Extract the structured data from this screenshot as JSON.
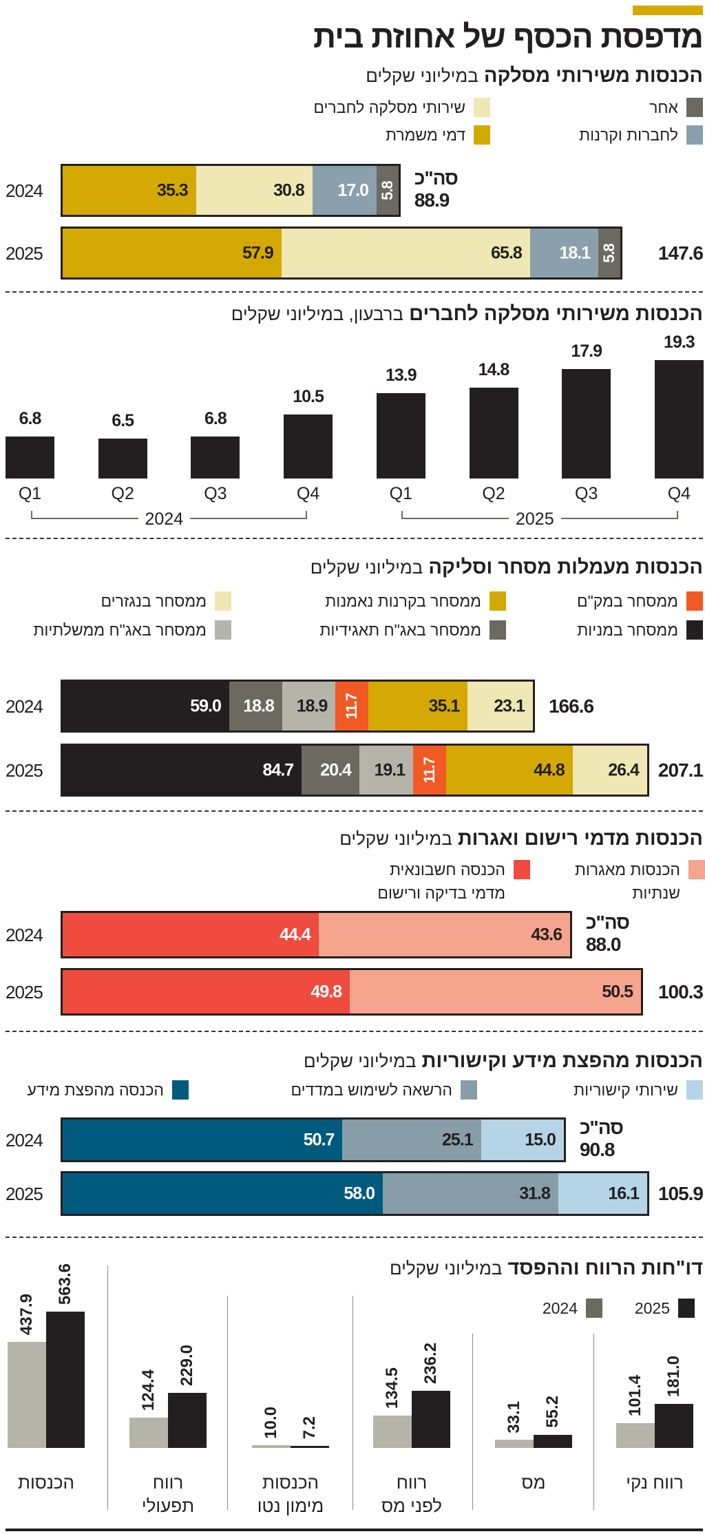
{
  "header": {
    "title": "מדפסת הכסף של אחוזת בית",
    "accent_color": "#d4a904"
  },
  "chart_data": [
    {
      "type": "bar",
      "stacked": true,
      "orientation": "horizontal",
      "title_bold": "הכנסות משירותי מסלקה",
      "title_light": "במיליוני שקלים",
      "categories": [
        "2024",
        "2025"
      ],
      "total_label": "סה\"כ",
      "totals": [
        "88.9",
        "147.6"
      ],
      "series": [
        {
          "name": "דמי משמרת",
          "color": "#d4a904",
          "text": "#231f20",
          "values": [
            35.3,
            57.9
          ]
        },
        {
          "name": "שירותי מסלקה לחברים",
          "color": "#efe8b4",
          "text": "#231f20",
          "values": [
            30.8,
            65.8
          ]
        },
        {
          "name": "לחברות וקרנות",
          "color": "#8ba0ad",
          "text": "#ffffff",
          "values": [
            17.0,
            18.1
          ]
        },
        {
          "name": "אחר",
          "color": "#6b6a60",
          "text": "#ffffff",
          "values": [
            5.8,
            5.8
          ]
        }
      ],
      "legend_order": [
        [
          3,
          1
        ],
        [
          2,
          0
        ]
      ]
    },
    {
      "type": "bar",
      "title_bold": "הכנסות משירותי מסלקה לחברים",
      "title_light": "ברבעון, במיליוני שקלים",
      "categories": [
        "Q1",
        "Q2",
        "Q3",
        "Q4",
        "Q1",
        "Q2",
        "Q3",
        "Q4"
      ],
      "groups": [
        "2024",
        "2025"
      ],
      "values": [
        6.8,
        6.5,
        6.8,
        10.5,
        13.9,
        14.8,
        17.9,
        19.3
      ],
      "color": "#231f20"
    },
    {
      "type": "bar",
      "stacked": true,
      "orientation": "horizontal",
      "title_bold": "הכנסות מעמלות מסחר וסליקה",
      "title_light": "במיליוני שקלים",
      "categories": [
        "2024",
        "2025"
      ],
      "totals": [
        "166.6",
        "207.1"
      ],
      "series": [
        {
          "name": "ממסחר במניות",
          "color": "#231f20",
          "text": "#ffffff",
          "values": [
            59.0,
            84.7
          ]
        },
        {
          "name": "ממסחר באג\"ח תאגידיות",
          "color": "#6b6a60",
          "text": "#ffffff",
          "values": [
            18.8,
            20.4
          ]
        },
        {
          "name": "ממסחר באג\"ח ממשלתיות",
          "color": "#b5b4a8",
          "text": "#231f20",
          "values": [
            18.9,
            19.1
          ]
        },
        {
          "name": "ממסחר במק\"ם",
          "color": "#f15a24",
          "text": "#ffffff",
          "values": [
            11.7,
            11.7
          ]
        },
        {
          "name": "ממסחר בקרנות נאמנות",
          "color": "#d4a904",
          "text": "#231f20",
          "values": [
            35.1,
            44.8
          ]
        },
        {
          "name": "ממסחר בנגזרים",
          "color": "#efe8b4",
          "text": "#231f20",
          "values": [
            23.1,
            26.4
          ]
        }
      ],
      "legend_order": [
        [
          3,
          4,
          5
        ],
        [
          0,
          1,
          2
        ]
      ]
    },
    {
      "type": "bar",
      "stacked": true,
      "orientation": "horizontal",
      "title_bold": "הכנסות מדמי רישום ואגרות",
      "title_light": "במיליוני שקלים",
      "categories": [
        "2024",
        "2025"
      ],
      "total_label": "סה\"כ",
      "totals": [
        "88.0",
        "100.3"
      ],
      "series": [
        {
          "name": "הכנסה חשבונאית\nמדמי בדיקה ורישום",
          "color": "#ef4b3f",
          "text": "#ffffff",
          "values": [
            44.4,
            49.8
          ]
        },
        {
          "name": "הכנסות מאגרות\nשנתיות",
          "color": "#f5a48e",
          "text": "#231f20",
          "values": [
            43.6,
            50.5
          ]
        }
      ],
      "legend_order": [
        [
          1,
          0
        ]
      ]
    },
    {
      "type": "bar",
      "stacked": true,
      "orientation": "horizontal",
      "title_bold": "הכנסות מהפצת מידע וקישוריות",
      "title_light": "במיליוני שקלים",
      "categories": [
        "2024",
        "2025"
      ],
      "total_label": "סה\"כ",
      "totals": [
        "90.8",
        "105.9"
      ],
      "series": [
        {
          "name": "הכנסה מהפצת מידע",
          "color": "#005a7d",
          "text": "#ffffff",
          "values": [
            50.7,
            58.0
          ]
        },
        {
          "name": "הרשאה לשימוש במדדים",
          "color": "#879ea9",
          "text": "#231f20",
          "values": [
            25.1,
            31.8
          ]
        },
        {
          "name": "שירותי קישוריות",
          "color": "#b5d5e6",
          "text": "#231f20",
          "values": [
            15.0,
            16.1
          ]
        }
      ],
      "legend_order": [
        [
          2,
          1,
          0
        ]
      ]
    },
    {
      "type": "bar",
      "grouped": true,
      "title_bold": "דו\"חות הרווח וההפסד",
      "title_light": "במיליוני שקלים",
      "categories": [
        "רווח נקי",
        "מס",
        "רווח\nלפני מס",
        "הכנסות\nמימון נטו",
        "רווח\nתפעולי",
        "הכנסות"
      ],
      "series": [
        {
          "name": "2025",
          "color": "#231f20",
          "values": [
            181.0,
            55.2,
            236.2,
            7.2,
            229.0,
            563.6
          ]
        },
        {
          "name": "2024",
          "color": "#b5b4a8",
          "legend_color": "#6b6a60",
          "values": [
            101.4,
            33.1,
            134.5,
            10.0,
            124.4,
            437.9
          ]
        }
      ]
    }
  ]
}
